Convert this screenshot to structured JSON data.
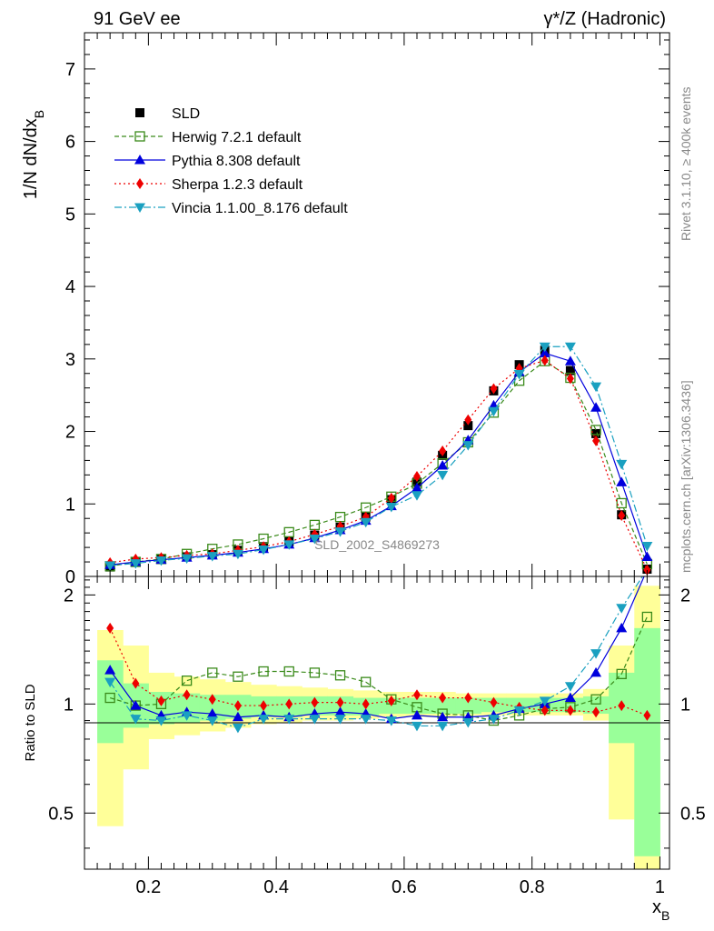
{
  "header": {
    "left_label": "91 GeV ee",
    "right_label": "γ*/Z (Hadronic)"
  },
  "side_labels": {
    "rivet": "Rivet 3.1.10, ≥ 400k events",
    "mcplots": "mcplots.cern.ch [arXiv:1306.3436]"
  },
  "watermark": "SLD_2002_S4869273",
  "colors": {
    "SLD": "#000000",
    "Herwig": "#3a8a1a",
    "Pythia": "#0000dd",
    "Sherpa": "#ee0000",
    "Vincia": "#1aa0c0",
    "band_inner": "#99ff99",
    "band_outer": "#ffff99"
  },
  "chart_data": [
    {
      "type": "scatter",
      "ylabel_main": "1/N dN/dx",
      "ylabel_sub": "B",
      "ylim": [
        0,
        7.5
      ],
      "y_ticks": [
        0,
        1,
        2,
        3,
        4,
        5,
        6,
        7
      ],
      "y_tick_labels": [
        "0",
        "1",
        "2",
        "3",
        "4",
        "5",
        "6",
        "7"
      ],
      "xlim": [
        0.1,
        1.015
      ],
      "x": [
        0.14,
        0.18,
        0.22,
        0.26,
        0.3,
        0.34,
        0.38,
        0.42,
        0.46,
        0.5,
        0.54,
        0.58,
        0.62,
        0.66,
        0.7,
        0.74,
        0.78,
        0.82,
        0.86,
        0.9,
        0.94,
        0.98
      ],
      "legend": [
        "SLD",
        "Herwig 7.2.1 default",
        "Pythia 8.308 default",
        "Sherpa 1.2.3 default",
        "Vincia 1.1.00_8.176 default"
      ],
      "series": [
        {
          "name": "SLD",
          "key": "SLD",
          "values": [
            0.13,
            0.2,
            0.24,
            0.27,
            0.3,
            0.36,
            0.41,
            0.48,
            0.57,
            0.68,
            0.82,
            1.06,
            1.3,
            1.67,
            2.08,
            2.56,
            2.92,
            3.12,
            2.84,
            1.97,
            0.85,
            0.1
          ]
        },
        {
          "name": "Herwig 7.2.1 default",
          "key": "Herwig",
          "values": [
            0.14,
            0.2,
            0.24,
            0.31,
            0.38,
            0.44,
            0.52,
            0.61,
            0.71,
            0.82,
            0.95,
            1.1,
            1.28,
            1.56,
            1.85,
            2.26,
            2.7,
            2.97,
            2.74,
            2.02,
            1.01,
            0.17
          ]
        },
        {
          "name": "Pythia 8.308 default",
          "key": "Pythia",
          "values": [
            0.16,
            0.2,
            0.23,
            0.26,
            0.29,
            0.33,
            0.38,
            0.44,
            0.53,
            0.64,
            0.77,
            0.97,
            1.22,
            1.53,
            1.88,
            2.36,
            2.82,
            3.08,
            2.97,
            2.33,
            1.3,
            0.27
          ]
        },
        {
          "name": "Sherpa 1.2.3 default",
          "key": "Sherpa",
          "values": [
            0.19,
            0.24,
            0.26,
            0.29,
            0.31,
            0.36,
            0.41,
            0.48,
            0.58,
            0.69,
            0.82,
            1.08,
            1.38,
            1.73,
            2.16,
            2.59,
            2.87,
            2.98,
            2.73,
            1.87,
            0.84,
            0.09
          ]
        },
        {
          "name": "Vincia 1.1.00_8.176 default",
          "key": "Vincia",
          "values": [
            0.15,
            0.18,
            0.22,
            0.25,
            0.28,
            0.31,
            0.37,
            0.44,
            0.52,
            0.62,
            0.75,
            0.96,
            1.12,
            1.4,
            1.81,
            2.28,
            2.79,
            3.17,
            3.17,
            2.62,
            1.55,
            0.42
          ]
        }
      ]
    },
    {
      "type": "line",
      "ylabel": "Ratio to SLD",
      "ylim": [
        0.35,
        2.25
      ],
      "y_ticks": [
        0.5,
        1,
        2
      ],
      "y_tick_labels": [
        "0.5",
        "1",
        "2"
      ],
      "xlim": [
        0.1,
        1.015
      ],
      "x_ticks": [
        0.2,
        0.4,
        0.6,
        0.8,
        1.0
      ],
      "x_tick_labels": [
        "0.2",
        "0.4",
        "0.6",
        "0.8",
        "1"
      ],
      "xlabel_main": "x",
      "xlabel_sub": "B",
      "bin_edges": [
        0.12,
        0.16,
        0.2,
        0.24,
        0.28,
        0.32,
        0.36,
        0.4,
        0.44,
        0.48,
        0.52,
        0.56,
        0.6,
        0.64,
        0.68,
        0.72,
        0.76,
        0.8,
        0.84,
        0.88,
        0.92,
        0.96,
        1.0
      ],
      "band_inner": [
        [
          0.78,
          1.32
        ],
        [
          0.86,
          1.14
        ],
        [
          0.88,
          1.08
        ],
        [
          0.89,
          1.07
        ],
        [
          0.9,
          1.06
        ],
        [
          0.91,
          1.06
        ],
        [
          0.92,
          1.05
        ],
        [
          0.92,
          1.05
        ],
        [
          0.93,
          1.05
        ],
        [
          0.93,
          1.05
        ],
        [
          0.93,
          1.04
        ],
        [
          0.94,
          1.04
        ],
        [
          0.94,
          1.04
        ],
        [
          0.94,
          1.04
        ],
        [
          0.94,
          1.04
        ],
        [
          0.95,
          1.04
        ],
        [
          0.95,
          1.04
        ],
        [
          0.95,
          1.04
        ],
        [
          0.95,
          1.04
        ],
        [
          0.94,
          1.05
        ],
        [
          0.78,
          1.22
        ],
        [
          0.38,
          1.62
        ]
      ],
      "band_outer": [
        [
          0.46,
          1.6
        ],
        [
          0.66,
          1.45
        ],
        [
          0.8,
          1.22
        ],
        [
          0.82,
          1.19
        ],
        [
          0.84,
          1.17
        ],
        [
          0.86,
          1.15
        ],
        [
          0.88,
          1.13
        ],
        [
          0.89,
          1.12
        ],
        [
          0.9,
          1.11
        ],
        [
          0.9,
          1.1
        ],
        [
          0.91,
          1.09
        ],
        [
          0.92,
          1.08
        ],
        [
          0.92,
          1.08
        ],
        [
          0.92,
          1.08
        ],
        [
          0.93,
          1.07
        ],
        [
          0.93,
          1.07
        ],
        [
          0.93,
          1.07
        ],
        [
          0.93,
          1.07
        ],
        [
          0.93,
          1.07
        ],
        [
          0.9,
          1.1
        ],
        [
          0.48,
          1.45
        ],
        [
          0.33,
          2.12
        ]
      ],
      "series": [
        {
          "name": "Herwig 7.2.1 default",
          "key": "Herwig",
          "values": [
            1.04,
            0.99,
            1.0,
            1.16,
            1.22,
            1.19,
            1.23,
            1.23,
            1.22,
            1.2,
            1.15,
            1.03,
            0.98,
            0.94,
            0.93,
            0.9,
            0.93,
            0.97,
            0.98,
            1.03,
            1.21,
            1.74
          ]
        },
        {
          "name": "Pythia 8.308 default",
          "key": "Pythia",
          "values": [
            1.24,
            0.99,
            0.93,
            0.95,
            0.94,
            0.92,
            0.93,
            0.92,
            0.94,
            0.95,
            0.94,
            0.91,
            0.93,
            0.92,
            0.92,
            0.93,
            0.97,
            1.0,
            1.04,
            1.22,
            1.62,
            2.35
          ]
        },
        {
          "name": "Sherpa 1.2.3 default",
          "key": "Sherpa",
          "values": [
            1.62,
            1.14,
            1.02,
            1.06,
            1.03,
            0.99,
            0.99,
            1.0,
            1.01,
            1.01,
            1.0,
            1.02,
            1.06,
            1.04,
            1.04,
            1.01,
            0.98,
            0.96,
            0.96,
            0.95,
            0.99,
            0.93
          ]
        },
        {
          "name": "Vincia 1.1.00_8.176 default",
          "key": "Vincia",
          "values": [
            1.15,
            0.91,
            0.9,
            0.93,
            0.9,
            0.86,
            0.91,
            0.91,
            0.91,
            0.91,
            0.91,
            0.9,
            0.87,
            0.87,
            0.89,
            0.91,
            0.96,
            1.02,
            1.12,
            1.38,
            1.84,
            2.35
          ]
        }
      ]
    }
  ]
}
